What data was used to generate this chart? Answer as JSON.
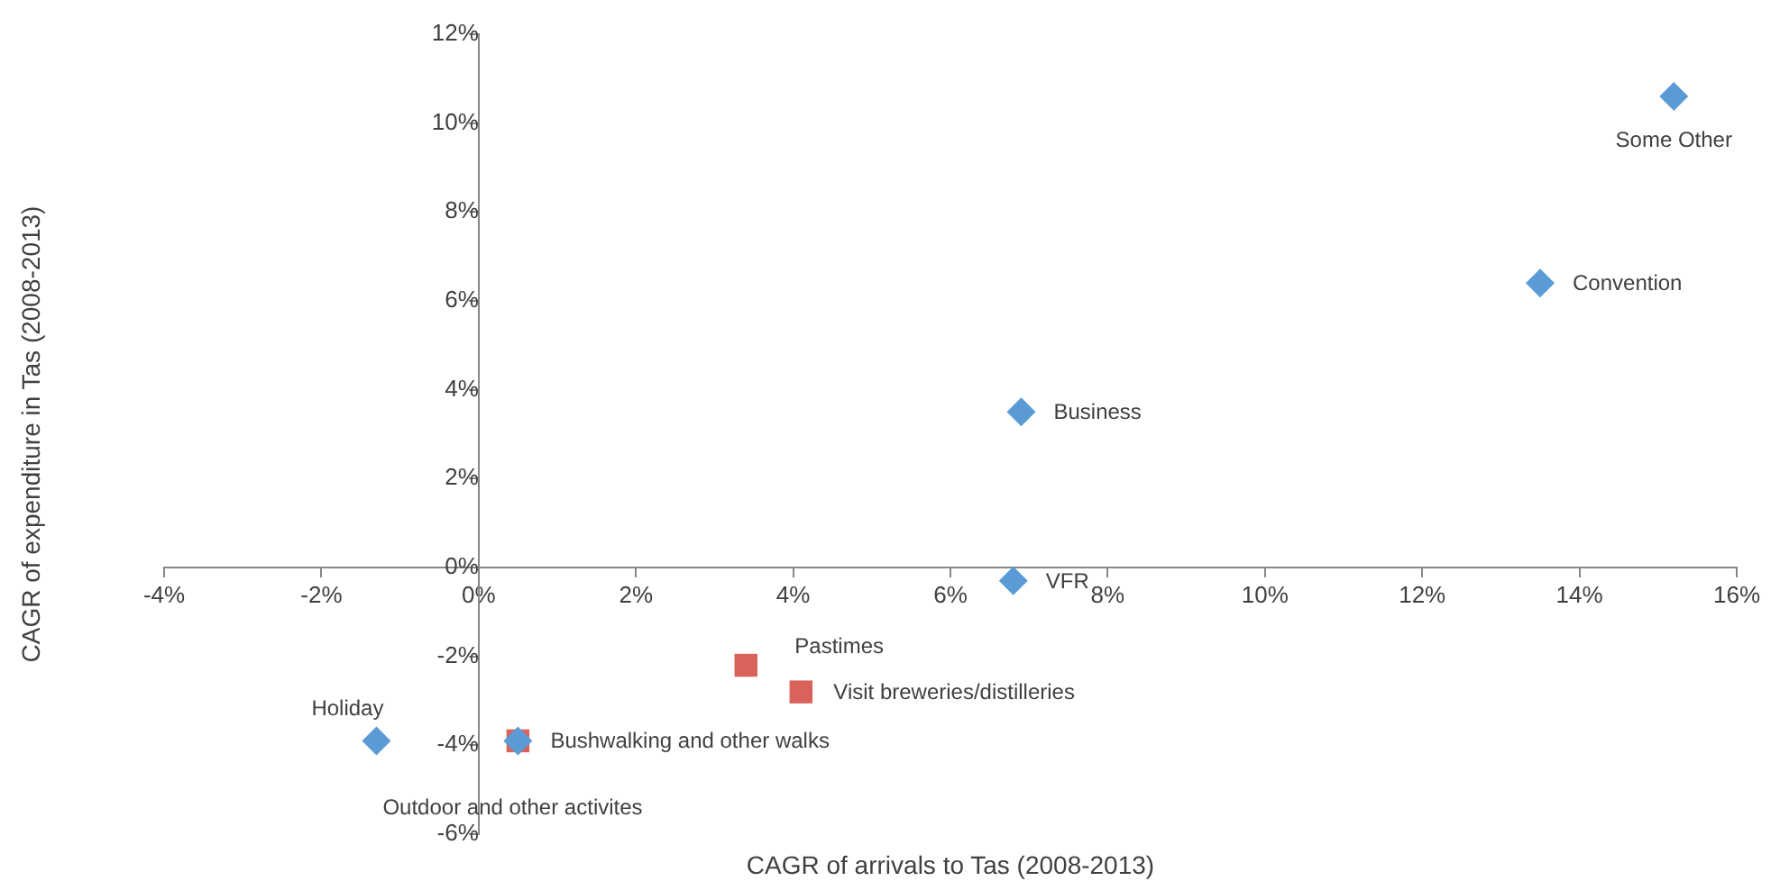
{
  "chart_data": {
    "type": "scatter",
    "xlabel": "CAGR of arrivals to Tas (2008-2013)",
    "ylabel": "CAGR of expenditure in Tas (2008-2013)",
    "xlim": [
      -4,
      16
    ],
    "xticks": [
      {
        "value": -4,
        "label": "-4%"
      },
      {
        "value": -2,
        "label": "-2%"
      },
      {
        "value": 0,
        "label": "0%"
      },
      {
        "value": 2,
        "label": "2%"
      },
      {
        "value": 4,
        "label": "4%"
      },
      {
        "value": 6,
        "label": "6%"
      },
      {
        "value": 8,
        "label": "8%"
      },
      {
        "value": 10,
        "label": "10%"
      },
      {
        "value": 12,
        "label": "12%"
      },
      {
        "value": 14,
        "label": "14%"
      },
      {
        "value": 16,
        "label": "16%"
      }
    ],
    "ylim": [
      -6,
      12
    ],
    "yticks": [
      {
        "value": -6,
        "label": "-6%"
      },
      {
        "value": -4,
        "label": "-4%"
      },
      {
        "value": -2,
        "label": "-2%"
      },
      {
        "value": 0,
        "label": "0%"
      },
      {
        "value": 2,
        "label": "2%"
      },
      {
        "value": 4,
        "label": "4%"
      },
      {
        "value": 6,
        "label": "6%"
      },
      {
        "value": 8,
        "label": "8%"
      },
      {
        "value": 10,
        "label": "10%"
      },
      {
        "value": 12,
        "label": "12%"
      }
    ],
    "grid": false,
    "legend": false,
    "series": [
      {
        "color": "#5b9bd5",
        "marker": "diamond",
        "x": [
          15.2,
          13.5,
          6.9,
          6.8,
          -1.3,
          0.5
        ],
        "values": [
          10.6,
          6.4,
          3.5,
          -0.3,
          -3.9,
          -3.9
        ],
        "value_labels": [
          "Some Other",
          "Convention",
          "Business",
          "VFR",
          "Holiday",
          "Outdoor and other activites"
        ]
      },
      {
        "color": "#d9625b",
        "marker": "square",
        "x": [
          3.4,
          4.1,
          0.5
        ],
        "values": [
          -2.2,
          -2.8,
          -3.9
        ],
        "value_labels": [
          "Pastimes",
          "Visit breweries/distilleries",
          "Bushwalking and other walks"
        ]
      }
    ]
  }
}
